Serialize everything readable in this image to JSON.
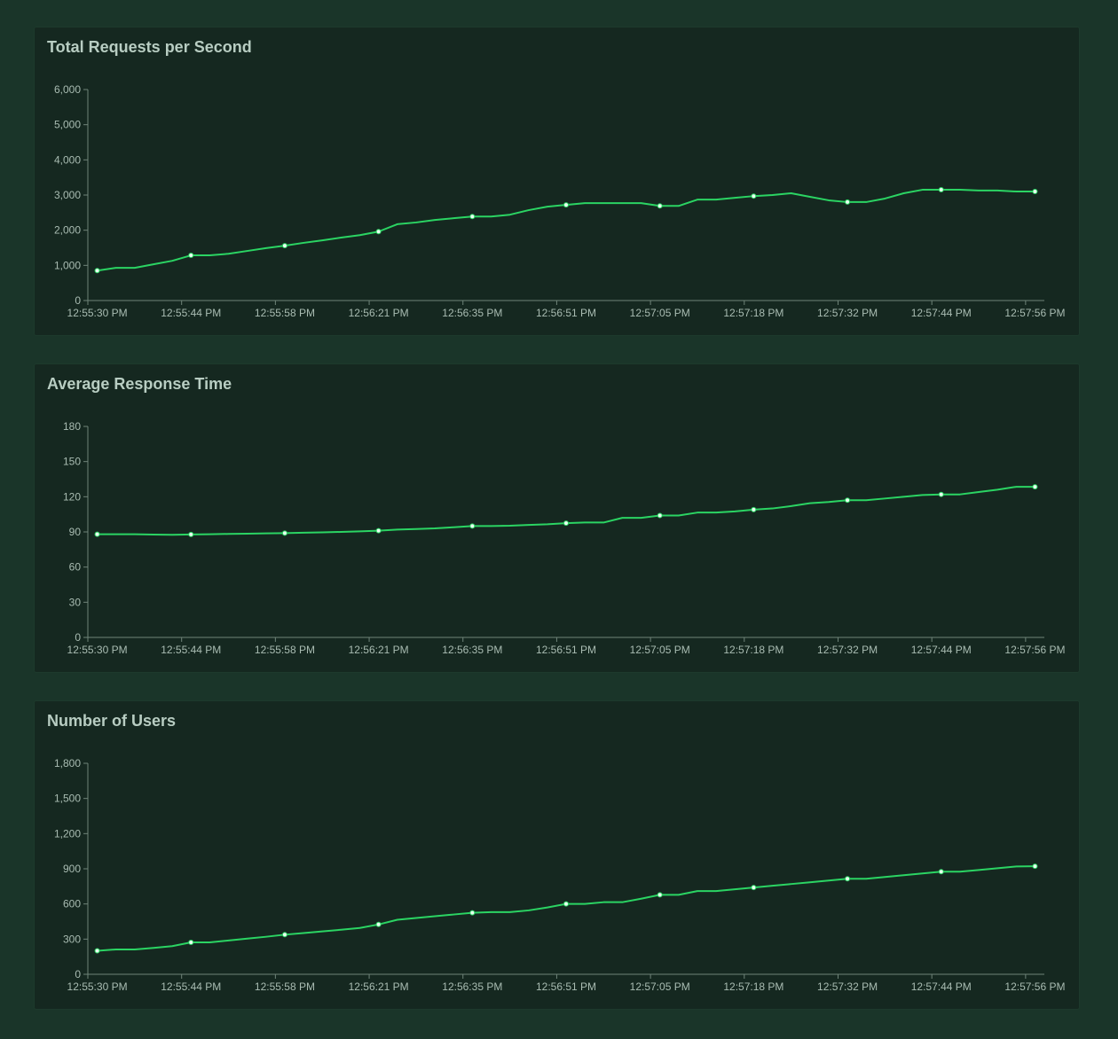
{
  "chart_data": [
    {
      "type": "line",
      "title": "Total Requests per Second",
      "ylim": [
        0,
        6000
      ],
      "yticks": [
        "0",
        "1,000",
        "2,000",
        "3,000",
        "4,000",
        "5,000",
        "6,000"
      ],
      "xtick_labels": [
        "12:55:30 PM",
        "12:55:44 PM",
        "12:55:58 PM",
        "12:56:21 PM",
        "12:56:35 PM",
        "12:56:51 PM",
        "12:57:05 PM",
        "12:57:18 PM",
        "12:57:32 PM",
        "12:57:44 PM",
        "12:57:56 PM"
      ],
      "grid": false,
      "color": "#2bd463",
      "values": [
        850,
        930,
        930,
        1030,
        1130,
        1285,
        1285,
        1330,
        1410,
        1490,
        1560,
        1640,
        1710,
        1790,
        1860,
        1960,
        2170,
        2220,
        2290,
        2340,
        2390,
        2390,
        2440,
        2570,
        2670,
        2720,
        2770,
        2770,
        2770,
        2770,
        2690,
        2690,
        2870,
        2870,
        2920,
        2970,
        3000,
        3050,
        2950,
        2850,
        2800,
        2800,
        2900,
        3050,
        3150,
        3150,
        3150,
        3130,
        3130,
        3100,
        3100
      ]
    },
    {
      "type": "line",
      "title": "Average Response Time",
      "ylim": [
        0,
        180
      ],
      "yticks": [
        "0",
        "30",
        "60",
        "90",
        "120",
        "150",
        "180"
      ],
      "xtick_labels": [
        "12:55:30 PM",
        "12:55:44 PM",
        "12:55:58 PM",
        "12:56:21 PM",
        "12:56:35 PM",
        "12:56:51 PM",
        "12:57:05 PM",
        "12:57:18 PM",
        "12:57:32 PM",
        "12:57:44 PM",
        "12:57:56 PM"
      ],
      "grid": false,
      "color": "#2bd463",
      "values": [
        88,
        88,
        88,
        87.7,
        87.5,
        87.8,
        88,
        88.3,
        88.5,
        88.8,
        89,
        89.3,
        89.6,
        90,
        90.5,
        91,
        92,
        92.5,
        93,
        94,
        95,
        95,
        95.3,
        96,
        96.5,
        97.5,
        98,
        98,
        102,
        102,
        104,
        104,
        106.5,
        106.5,
        107.5,
        109,
        110,
        112,
        114.5,
        115.5,
        117,
        117,
        118.5,
        120,
        121.5,
        122,
        122,
        124,
        126,
        128.5,
        128.5
      ]
    },
    {
      "type": "line",
      "title": "Number of Users",
      "ylim": [
        0,
        1800
      ],
      "yticks": [
        "0",
        "300",
        "600",
        "900",
        "1,200",
        "1,500",
        "1,800"
      ],
      "xtick_labels": [
        "12:55:30 PM",
        "12:55:44 PM",
        "12:55:58 PM",
        "12:56:21 PM",
        "12:56:35 PM",
        "12:56:51 PM",
        "12:57:05 PM",
        "12:57:18 PM",
        "12:57:32 PM",
        "12:57:44 PM",
        "12:57:56 PM"
      ],
      "grid": false,
      "color": "#2bd463",
      "values": [
        200,
        212,
        212,
        225,
        240,
        272,
        272,
        288,
        304,
        320,
        338,
        352,
        366,
        380,
        395,
        425,
        465,
        480,
        495,
        510,
        525,
        530,
        530,
        545,
        570,
        600,
        600,
        615,
        615,
        645,
        678,
        678,
        710,
        710,
        725,
        740,
        755,
        770,
        785,
        800,
        815,
        815,
        830,
        845,
        860,
        875,
        875,
        890,
        905,
        920,
        922
      ]
    }
  ]
}
